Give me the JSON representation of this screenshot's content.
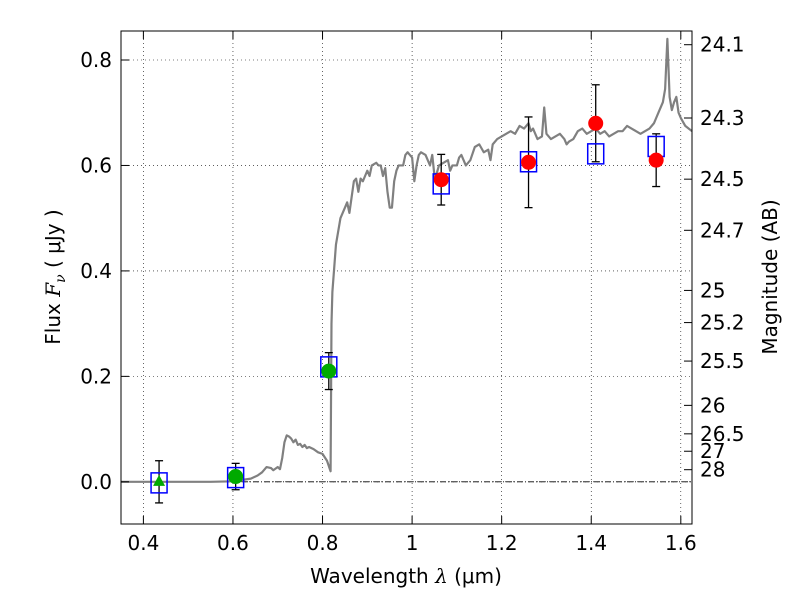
{
  "chart_data": {
    "type": "scatter",
    "title": "",
    "xlabel": "Wavelength  λ (μm)",
    "ylabel": "Flux  F_ν  ( μJy )",
    "ylabel_parts": {
      "prefix": "Flux  ",
      "symbol": "F",
      "subscript": "ν",
      "suffix": "  ( μJy )"
    },
    "xlabel_parts": {
      "prefix": "Wavelength  ",
      "symbol": "λ",
      "suffix": " (μm)"
    },
    "y2label": "Magnitude (AB)",
    "xlim": [
      0.35,
      1.625
    ],
    "ylim": [
      -0.08,
      0.855
    ],
    "grid": true,
    "x_ticks": [
      0.4,
      0.6,
      0.8,
      1.0,
      1.2,
      1.4,
      1.6
    ],
    "x_tick_labels": [
      "0.4",
      "0.6",
      "0.8",
      "1",
      "1.2",
      "1.4",
      "1.6"
    ],
    "y_ticks": [
      0.0,
      0.2,
      0.4,
      0.6,
      0.8
    ],
    "y_tick_labels": [
      "0.0",
      "0.2",
      "0.4",
      "0.6",
      "0.8"
    ],
    "mag_ticks": [
      {
        "label": "24.1",
        "flux": 0.829
      },
      {
        "label": "24.3",
        "flux": 0.69
      },
      {
        "label": "24.5",
        "flux": 0.574
      },
      {
        "label": "24.7",
        "flux": 0.477
      },
      {
        "label": "25",
        "flux": 0.363
      },
      {
        "label": "25.2",
        "flux": 0.302
      },
      {
        "label": "25.5",
        "flux": 0.229
      },
      {
        "label": "26",
        "flux": 0.145
      },
      {
        "label": "26.5",
        "flux": 0.091
      },
      {
        "label": "27",
        "flux": 0.058
      },
      {
        "label": "28",
        "flux": 0.023
      }
    ],
    "model_spectrum": {
      "color": "#808080",
      "points": [
        [
          0.35,
          0.0
        ],
        [
          0.55,
          0.0
        ],
        [
          0.6,
          0.001
        ],
        [
          0.64,
          0.006
        ],
        [
          0.655,
          0.012
        ],
        [
          0.665,
          0.018
        ],
        [
          0.675,
          0.028
        ],
        [
          0.685,
          0.026
        ],
        [
          0.69,
          0.022
        ],
        [
          0.695,
          0.025
        ],
        [
          0.7,
          0.028
        ],
        [
          0.705,
          0.024
        ],
        [
          0.71,
          0.045
        ],
        [
          0.715,
          0.075
        ],
        [
          0.72,
          0.088
        ],
        [
          0.725,
          0.086
        ],
        [
          0.73,
          0.082
        ],
        [
          0.735,
          0.075
        ],
        [
          0.74,
          0.08
        ],
        [
          0.745,
          0.07
        ],
        [
          0.75,
          0.072
        ],
        [
          0.755,
          0.066
        ],
        [
          0.76,
          0.07
        ],
        [
          0.765,
          0.064
        ],
        [
          0.77,
          0.066
        ],
        [
          0.78,
          0.062
        ],
        [
          0.79,
          0.056
        ],
        [
          0.8,
          0.053
        ],
        [
          0.81,
          0.04
        ],
        [
          0.818,
          0.02
        ],
        [
          0.82,
          0.3
        ],
        [
          0.822,
          0.36
        ],
        [
          0.83,
          0.45
        ],
        [
          0.84,
          0.5
        ],
        [
          0.85,
          0.52
        ],
        [
          0.855,
          0.53
        ],
        [
          0.86,
          0.51
        ],
        [
          0.865,
          0.54
        ],
        [
          0.87,
          0.57
        ],
        [
          0.875,
          0.575
        ],
        [
          0.88,
          0.55
        ],
        [
          0.885,
          0.575
        ],
        [
          0.89,
          0.57
        ],
        [
          0.895,
          0.58
        ],
        [
          0.9,
          0.59
        ],
        [
          0.905,
          0.58
        ],
        [
          0.91,
          0.6
        ],
        [
          0.92,
          0.605
        ],
        [
          0.925,
          0.6
        ],
        [
          0.93,
          0.6
        ],
        [
          0.935,
          0.58
        ],
        [
          0.94,
          0.595
        ],
        [
          0.945,
          0.55
        ],
        [
          0.95,
          0.52
        ],
        [
          0.955,
          0.52
        ],
        [
          0.96,
          0.57
        ],
        [
          0.965,
          0.59
        ],
        [
          0.97,
          0.6
        ],
        [
          0.98,
          0.6
        ],
        [
          0.985,
          0.62
        ],
        [
          0.99,
          0.625
        ],
        [
          0.995,
          0.62
        ],
        [
          1.0,
          0.615
        ],
        [
          1.005,
          0.57
        ],
        [
          1.01,
          0.6
        ],
        [
          1.015,
          0.62
        ],
        [
          1.02,
          0.625
        ],
        [
          1.03,
          0.62
        ],
        [
          1.04,
          0.6
        ],
        [
          1.045,
          0.62
        ],
        [
          1.05,
          0.58
        ],
        [
          1.055,
          0.585
        ],
        [
          1.06,
          0.6
        ],
        [
          1.07,
          0.605
        ],
        [
          1.08,
          0.61
        ],
        [
          1.085,
          0.59
        ],
        [
          1.09,
          0.6
        ],
        [
          1.1,
          0.6
        ],
        [
          1.105,
          0.615
        ],
        [
          1.11,
          0.62
        ],
        [
          1.115,
          0.61
        ],
        [
          1.12,
          0.6
        ],
        [
          1.13,
          0.61
        ],
        [
          1.14,
          0.635
        ],
        [
          1.15,
          0.64
        ],
        [
          1.16,
          0.625
        ],
        [
          1.17,
          0.63
        ],
        [
          1.175,
          0.61
        ],
        [
          1.18,
          0.64
        ],
        [
          1.19,
          0.65
        ],
        [
          1.2,
          0.655
        ],
        [
          1.21,
          0.66
        ],
        [
          1.22,
          0.665
        ],
        [
          1.23,
          0.66
        ],
        [
          1.24,
          0.675
        ],
        [
          1.25,
          0.67
        ],
        [
          1.26,
          0.68
        ],
        [
          1.265,
          0.665
        ],
        [
          1.27,
          0.67
        ],
        [
          1.28,
          0.65
        ],
        [
          1.29,
          0.655
        ],
        [
          1.295,
          0.71
        ],
        [
          1.3,
          0.66
        ],
        [
          1.31,
          0.65
        ],
        [
          1.32,
          0.655
        ],
        [
          1.33,
          0.66
        ],
        [
          1.34,
          0.65
        ],
        [
          1.345,
          0.64
        ],
        [
          1.35,
          0.645
        ],
        [
          1.36,
          0.65
        ],
        [
          1.37,
          0.665
        ],
        [
          1.38,
          0.67
        ],
        [
          1.39,
          0.66
        ],
        [
          1.4,
          0.665
        ],
        [
          1.41,
          0.67
        ],
        [
          1.42,
          0.66
        ],
        [
          1.43,
          0.665
        ],
        [
          1.44,
          0.655
        ],
        [
          1.45,
          0.66
        ],
        [
          1.46,
          0.665
        ],
        [
          1.47,
          0.665
        ],
        [
          1.48,
          0.675
        ],
        [
          1.49,
          0.67
        ],
        [
          1.5,
          0.665
        ],
        [
          1.51,
          0.66
        ],
        [
          1.52,
          0.665
        ],
        [
          1.53,
          0.67
        ],
        [
          1.54,
          0.68
        ],
        [
          1.545,
          0.69
        ],
        [
          1.55,
          0.7
        ],
        [
          1.56,
          0.72
        ],
        [
          1.565,
          0.745
        ],
        [
          1.57,
          0.84
        ],
        [
          1.575,
          0.73
        ],
        [
          1.58,
          0.705
        ],
        [
          1.585,
          0.72
        ],
        [
          1.59,
          0.73
        ],
        [
          1.595,
          0.7
        ],
        [
          1.6,
          0.69
        ],
        [
          1.61,
          0.675
        ],
        [
          1.625,
          0.665
        ]
      ]
    },
    "model_photometry": {
      "marker": "open-square",
      "color": "#0000ff",
      "x": [
        0.435,
        0.606,
        0.814,
        1.065,
        1.26,
        1.41,
        1.545
      ],
      "y": [
        -0.002,
        0.008,
        0.218,
        0.565,
        0.607,
        0.622,
        0.636
      ]
    },
    "observed_photometry": [
      {
        "x": 0.435,
        "y": 0.0,
        "err": 0.04,
        "color": "#00aa00",
        "marker": "triangle"
      },
      {
        "x": 0.606,
        "y": 0.01,
        "err": 0.025,
        "color": "#00aa00",
        "marker": "circle"
      },
      {
        "x": 0.814,
        "y": 0.21,
        "err": 0.035,
        "color": "#00aa00",
        "marker": "circle"
      },
      {
        "x": 1.065,
        "y": 0.573,
        "err": 0.048,
        "color": "#ff0000",
        "marker": "circle"
      },
      {
        "x": 1.26,
        "y": 0.606,
        "err": 0.086,
        "color": "#ff0000",
        "marker": "circle"
      },
      {
        "x": 1.41,
        "y": 0.68,
        "err": 0.073,
        "color": "#ff0000",
        "marker": "circle"
      },
      {
        "x": 1.545,
        "y": 0.61,
        "err": 0.05,
        "color": "#ff0000",
        "marker": "circle"
      }
    ],
    "zero_line": {
      "y": 0.0,
      "style": "dash-dot",
      "color": "#000000"
    }
  }
}
